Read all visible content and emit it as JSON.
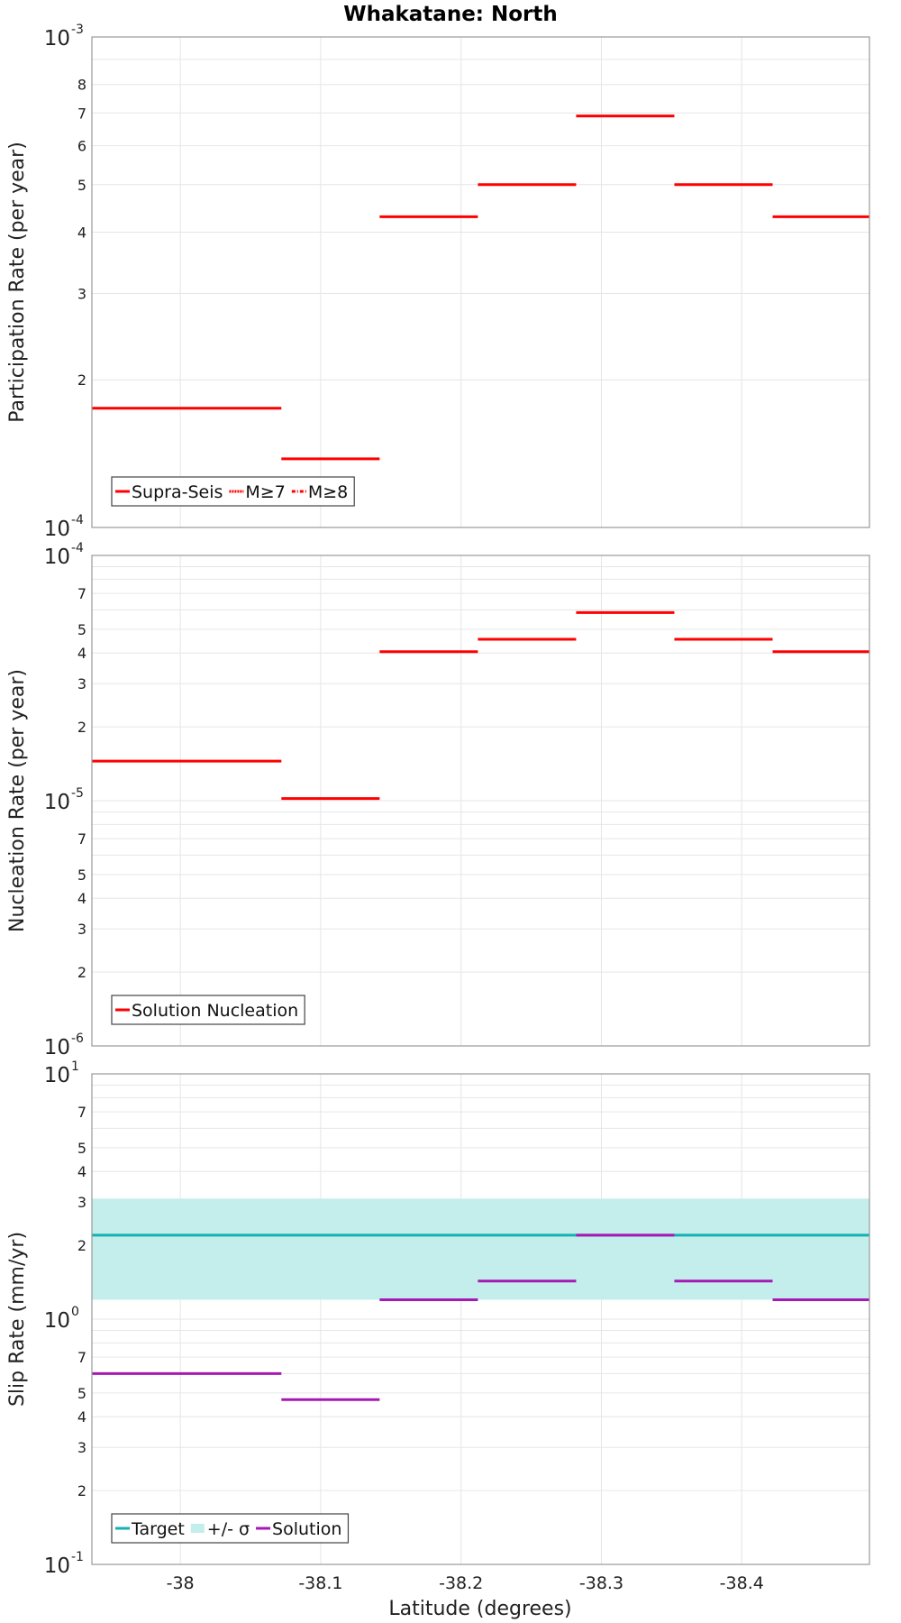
{
  "title": "Whakatane: North",
  "xlabel": "Latitude (degrees)",
  "xticks": [
    "-38",
    "-38.1",
    "-38.2",
    "-38.3",
    "-38.4"
  ],
  "chart_data": [
    {
      "type": "line",
      "subtype": "step",
      "ylabel": "Participation Rate (per year)",
      "yscale": "log",
      "ylim": [
        0.0001,
        0.001
      ],
      "xlim": [
        -37.937,
        -38.491
      ],
      "major_ticks": [
        {
          "base": "10",
          "exp": "-4",
          "value": 0.0001
        },
        {
          "base": "10",
          "exp": "-3",
          "value": 0.001
        }
      ],
      "minor_ticks": [
        "2",
        "3",
        "4",
        "5",
        "6",
        "7",
        "8"
      ],
      "series": [
        {
          "name": "Supra-Seis",
          "color": "#ff0000",
          "style": "solid",
          "segments": [
            {
              "x0": -37.937,
              "x1": -38.072,
              "y": 0.000175
            },
            {
              "x0": -38.072,
              "x1": -38.142,
              "y": 0.000138
            },
            {
              "x0": -38.142,
              "x1": -38.212,
              "y": 0.00043
            },
            {
              "x0": -38.212,
              "x1": -38.282,
              "y": 0.0005
            },
            {
              "x0": -38.282,
              "x1": -38.352,
              "y": 0.00069
            },
            {
              "x0": -38.352,
              "x1": -38.422,
              "y": 0.0005
            },
            {
              "x0": -38.422,
              "x1": -38.491,
              "y": 0.00043
            }
          ]
        },
        {
          "name": "M≥7",
          "color": "#ff0000",
          "style": "dotted",
          "segments": []
        },
        {
          "name": "M≥8",
          "color": "#ff0000",
          "style": "dashdot",
          "segments": []
        }
      ],
      "legend": [
        "Supra-Seis",
        "M≥7",
        "M≥8"
      ]
    },
    {
      "type": "line",
      "subtype": "step",
      "ylabel": "Nucleation Rate (per year)",
      "yscale": "log",
      "ylim": [
        1e-06,
        0.0001
      ],
      "xlim": [
        -37.937,
        -38.491
      ],
      "major_ticks": [
        {
          "base": "10",
          "exp": "-6",
          "value": 1e-06
        },
        {
          "base": "10",
          "exp": "-5",
          "value": 1e-05
        },
        {
          "base": "10",
          "exp": "-4",
          "value": 0.0001
        }
      ],
      "minor_ticks": [
        "2",
        "3",
        "4",
        "5",
        "7"
      ],
      "series": [
        {
          "name": "Solution Nucleation",
          "color": "#ff0000",
          "style": "solid",
          "segments": [
            {
              "x0": -37.937,
              "x1": -38.072,
              "y": 1.45e-05
            },
            {
              "x0": -38.072,
              "x1": -38.142,
              "y": 1.02e-05
            },
            {
              "x0": -38.142,
              "x1": -38.212,
              "y": 4.05e-05
            },
            {
              "x0": -38.212,
              "x1": -38.282,
              "y": 4.55e-05
            },
            {
              "x0": -38.282,
              "x1": -38.352,
              "y": 5.85e-05
            },
            {
              "x0": -38.352,
              "x1": -38.422,
              "y": 4.55e-05
            },
            {
              "x0": -38.422,
              "x1": -38.491,
              "y": 4.05e-05
            }
          ]
        }
      ],
      "legend": [
        "Solution Nucleation"
      ]
    },
    {
      "type": "line",
      "subtype": "step",
      "ylabel": "Slip Rate (mm/yr)",
      "yscale": "log",
      "ylim": [
        0.1,
        10
      ],
      "xlim": [
        -37.937,
        -38.491
      ],
      "major_ticks": [
        {
          "base": "10",
          "exp": "-1",
          "value": 0.1
        },
        {
          "base": "10",
          "exp": "0",
          "value": 1
        },
        {
          "base": "10",
          "exp": "1",
          "value": 10
        }
      ],
      "minor_ticks": [
        "2",
        "3",
        "4",
        "5",
        "7"
      ],
      "band": {
        "name": "+/- σ",
        "color": "#c4eeec",
        "y0": 1.2,
        "y1": 3.1
      },
      "series": [
        {
          "name": "Target",
          "color": "#14b1b1",
          "style": "solid",
          "segments": [
            {
              "x0": -37.937,
              "x1": -38.491,
              "y": 2.2
            }
          ]
        },
        {
          "name": "Solution",
          "color": "#a61ab3",
          "style": "solid",
          "segments": [
            {
              "x0": -37.937,
              "x1": -38.072,
              "y": 0.6
            },
            {
              "x0": -38.072,
              "x1": -38.142,
              "y": 0.47
            },
            {
              "x0": -38.142,
              "x1": -38.212,
              "y": 1.2
            },
            {
              "x0": -38.212,
              "x1": -38.282,
              "y": 1.43
            },
            {
              "x0": -38.282,
              "x1": -38.352,
              "y": 2.2
            },
            {
              "x0": -38.352,
              "x1": -38.422,
              "y": 1.43
            },
            {
              "x0": -38.422,
              "x1": -38.491,
              "y": 1.2
            }
          ]
        }
      ],
      "legend": [
        "Target",
        "+/- σ",
        "Solution"
      ]
    }
  ]
}
